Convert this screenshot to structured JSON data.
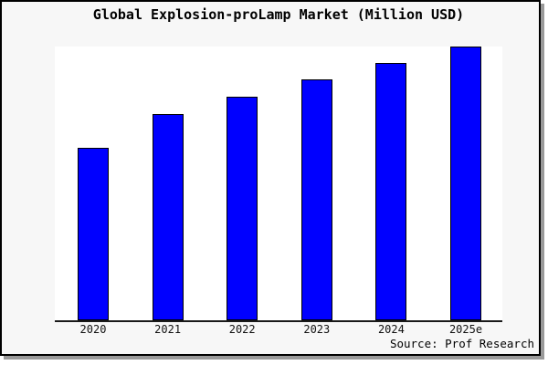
{
  "chart_data": {
    "type": "bar",
    "title": "Global Explosion-proLamp Market (Million USD)",
    "categories": [
      "2020",
      "2021",
      "2022",
      "2023",
      "2024",
      "2025e"
    ],
    "values": [
      189,
      226,
      245,
      264,
      282,
      300
    ],
    "xlabel": "",
    "ylabel": "",
    "ylim": [
      0,
      300
    ],
    "grid": false,
    "legend_position": "none",
    "y_axis_labels_visible": false,
    "source": "Source: Prof Research"
  },
  "colors": {
    "bar_fill": "#0000ff",
    "bar_edge": "#000000",
    "figure_background": "#f7f7f7",
    "plot_background": "#ffffff",
    "axis_line": "#1a1a1a",
    "frame_border": "#000000",
    "frame_shadow": "#9a9a9a",
    "text": "#000000"
  }
}
